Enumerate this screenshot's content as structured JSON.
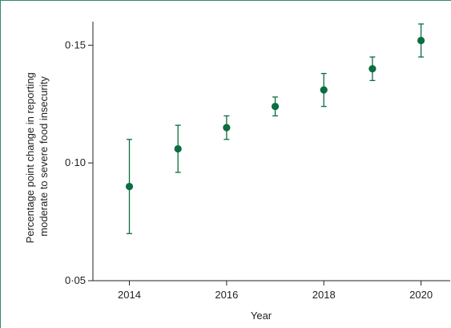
{
  "chart_data": {
    "type": "scatter",
    "title": "",
    "xlabel": "Year",
    "ylabel_lines": [
      "Percentage point change in reporting",
      "moderate to severe food insecurity"
    ],
    "xlim": [
      2013.25,
      2020.6
    ],
    "ylim": [
      0.05,
      0.16
    ],
    "xticks": [
      2014,
      2016,
      2018,
      2020
    ],
    "xtick_labels": [
      "2014",
      "2016",
      "2018",
      "2020"
    ],
    "yticks": [
      0.05,
      0.1,
      0.15
    ],
    "ytick_labels": [
      "0·05",
      "0·10",
      "0·15"
    ],
    "grid": false,
    "legend": "none",
    "colors": {
      "marker": "#0b6e3f",
      "axis": "#222222",
      "frame": "#2e8b6e"
    },
    "points": [
      {
        "x": 2014,
        "y": 0.09,
        "lower": 0.07,
        "upper": 0.11
      },
      {
        "x": 2015,
        "y": 0.106,
        "lower": 0.096,
        "upper": 0.116
      },
      {
        "x": 2016,
        "y": 0.115,
        "lower": 0.11,
        "upper": 0.12
      },
      {
        "x": 2017,
        "y": 0.124,
        "lower": 0.12,
        "upper": 0.128
      },
      {
        "x": 2018,
        "y": 0.131,
        "lower": 0.124,
        "upper": 0.138
      },
      {
        "x": 2019,
        "y": 0.14,
        "lower": 0.135,
        "upper": 0.145
      },
      {
        "x": 2020,
        "y": 0.152,
        "lower": 0.145,
        "upper": 0.159
      }
    ]
  }
}
